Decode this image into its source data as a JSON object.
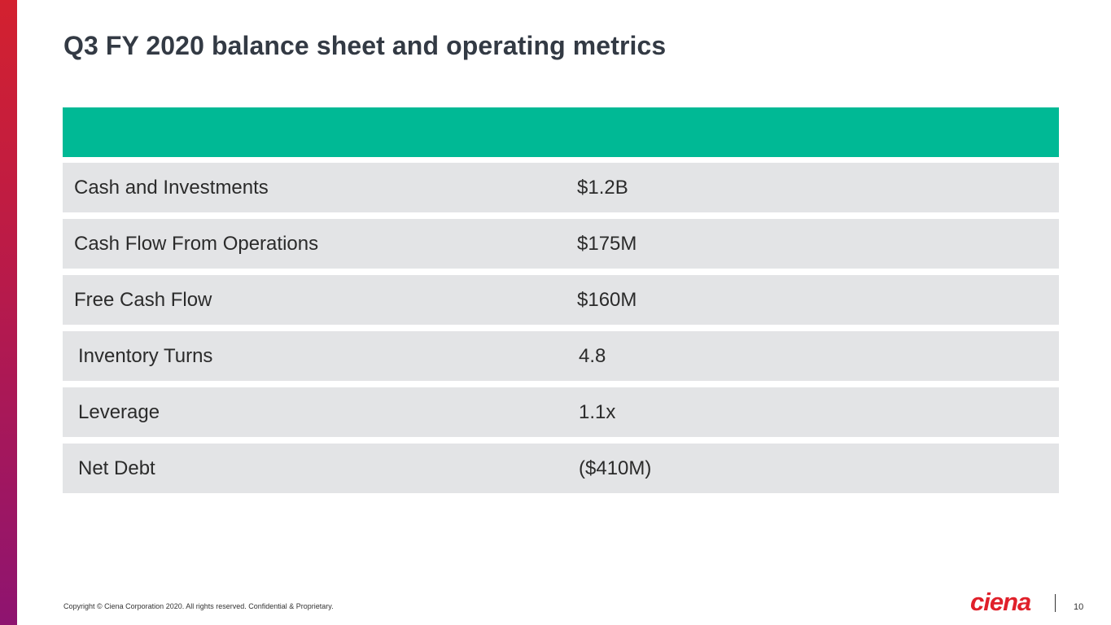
{
  "title": "Q3 FY 2020 balance sheet and operating metrics",
  "table": {
    "rows": [
      {
        "label": "Cash and Investments",
        "value": "$1.2B"
      },
      {
        "label": "Cash Flow From Operations",
        "value": "$175M"
      },
      {
        "label": "Free Cash Flow",
        "value": "$160M"
      },
      {
        "label": "Inventory Turns",
        "value": "4.8"
      },
      {
        "label": "Leverage",
        "value": "1.1x"
      },
      {
        "label": "Net Debt",
        "value": "($410M)"
      }
    ]
  },
  "footer": {
    "copyright": "Copyright © Ciena Corporation 2020. All rights reserved. Confidential & Proprietary.",
    "logo": "ciena",
    "page_number": "10"
  },
  "colors": {
    "header": "#00b995",
    "row_bg": "#e3e4e6",
    "accent_top": "#d3212f",
    "accent_bottom": "#8e1470",
    "logo": "#e0202a"
  }
}
